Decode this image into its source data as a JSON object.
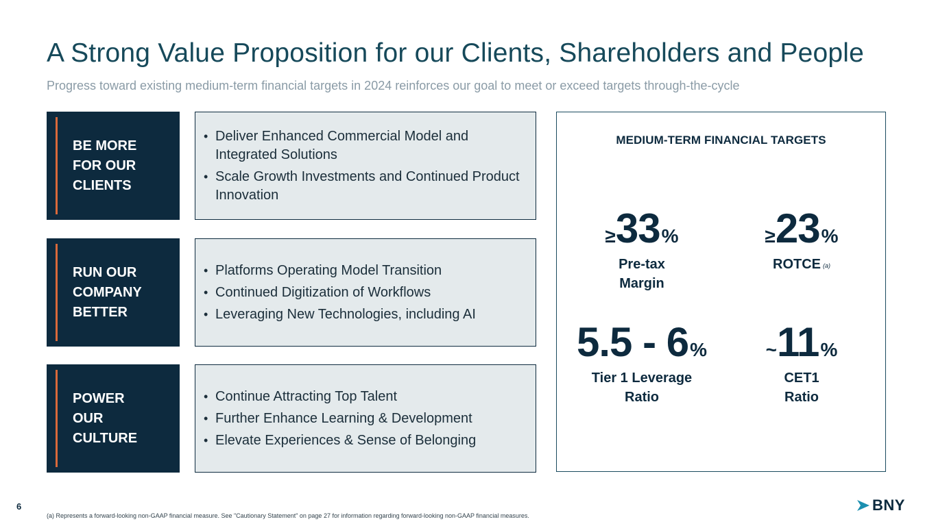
{
  "slide": {
    "title": "A Strong Value Proposition for our Clients, Shareholders and People",
    "subtitle": "Progress toward existing medium-term financial targets in 2024 reinforces our goal to meet or exceed targets through-the-cycle",
    "page_number": "6",
    "footnote": "(a) Represents a forward-looking non-GAAP financial measure. See \"Cautionary Statement\" on page 27 for information regarding forward-looking non-GAAP financial measures.",
    "logo_text": "BNY"
  },
  "pillars": [
    {
      "label": "BE MORE\nFOR OUR\nCLIENTS",
      "points": [
        "Deliver Enhanced Commercial Model and Integrated Solutions",
        "Scale Growth Investments and Continued Product Innovation"
      ]
    },
    {
      "label": "RUN OUR\nCOMPANY\nBETTER",
      "points": [
        "Platforms Operating Model Transition",
        "Continued Digitization of Workflows",
        "Leveraging New Technologies, including AI"
      ]
    },
    {
      "label": "POWER\nOUR\nCULTURE",
      "points": [
        "Continue Attracting Top Talent",
        "Further Enhance Learning & Development",
        "Elevate Experiences & Sense of Belonging"
      ]
    }
  ],
  "targets": {
    "heading": "MEDIUM-TERM FINANCIAL TARGETS",
    "metrics": [
      {
        "prefix": "≥",
        "value": "33",
        "suffix": "%",
        "label": "Pre-tax\nMargin",
        "note": ""
      },
      {
        "prefix": "≥",
        "value": "23",
        "suffix": "%",
        "label": "ROTCE",
        "note": "(a)"
      },
      {
        "prefix": "",
        "value": "5.5 - 6",
        "suffix": "%",
        "label": "Tier 1 Leverage\nRatio",
        "note": ""
      },
      {
        "prefix": "~",
        "value": "11",
        "suffix": "%",
        "label": "CET1\nRatio",
        "note": ""
      }
    ]
  },
  "colors": {
    "navy": "#0d2a3e",
    "accent_orange": "#d9693a",
    "panel_gray": "#e4eaec",
    "title_teal": "#16495a",
    "subtitle_gray": "#8a9ba6"
  }
}
